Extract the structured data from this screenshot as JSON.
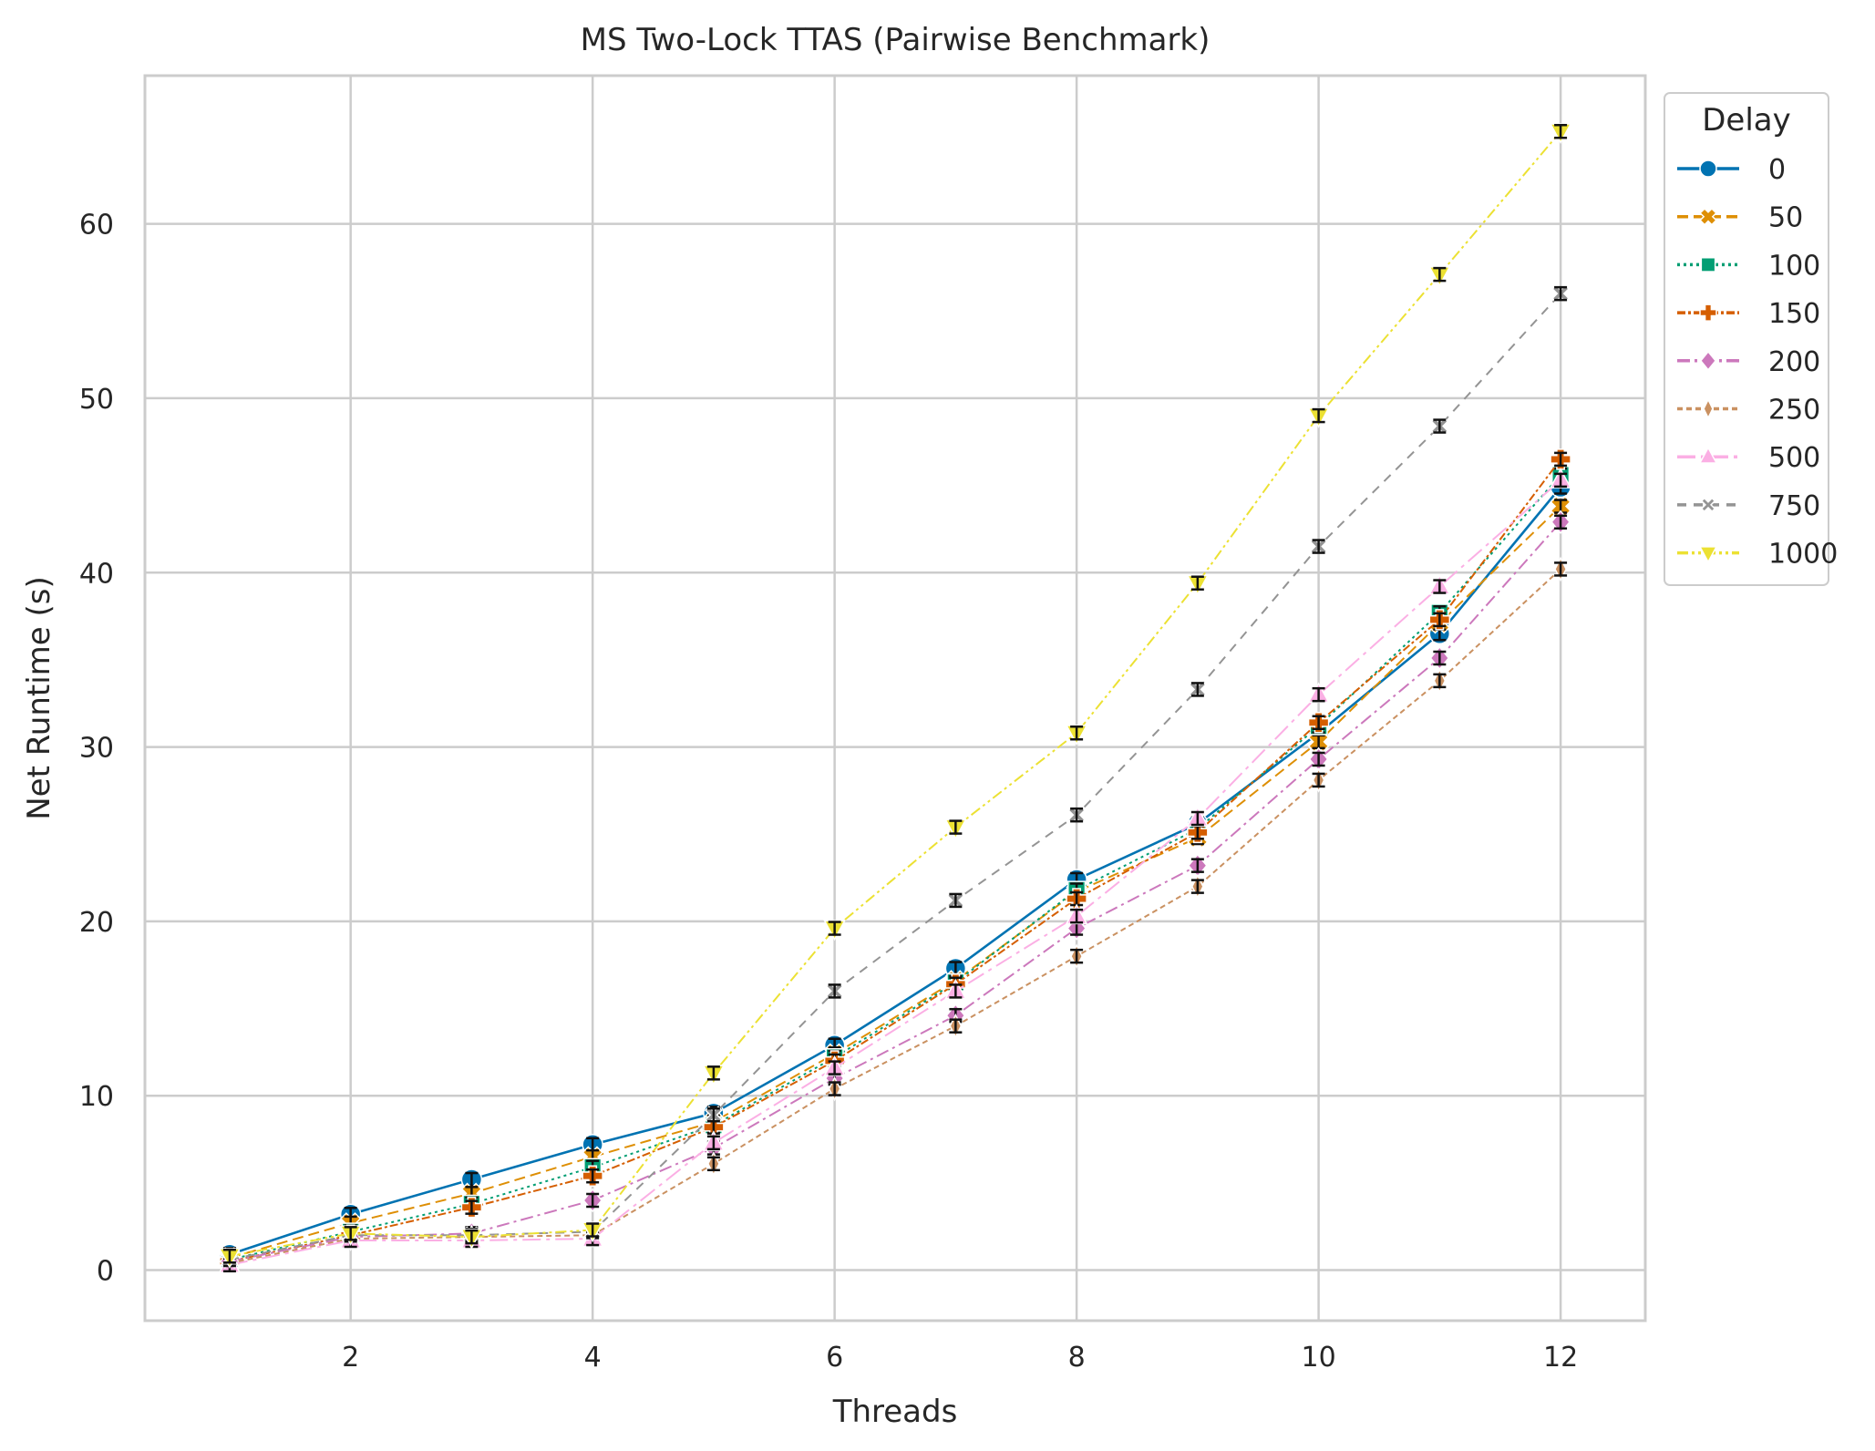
{
  "chart_data": {
    "type": "line",
    "title": "MS Two-Lock TTAS (Pairwise Benchmark)",
    "xlabel": "Threads",
    "ylabel": "Net Runtime (s)",
    "xlim": [
      0.3,
      12.7
    ],
    "ylim": [
      -2.9,
      68.5
    ],
    "x_ticks": [
      2,
      4,
      6,
      8,
      10,
      12
    ],
    "y_ticks": [
      0,
      10,
      20,
      30,
      40,
      50,
      60
    ],
    "grid": true,
    "error_bars": true,
    "legend": {
      "title": "Delay",
      "placement": "outside-top-right"
    },
    "x": [
      1,
      2,
      3,
      4,
      5,
      6,
      7,
      8,
      9,
      10,
      11,
      12
    ],
    "series": [
      {
        "name": "0",
        "color": "#0173b2",
        "marker": "circle",
        "dash": "solid",
        "values": [
          0.9,
          3.2,
          5.2,
          7.2,
          9.0,
          12.9,
          17.3,
          22.4,
          25.6,
          30.8,
          36.5,
          44.9
        ]
      },
      {
        "name": "50",
        "color": "#de8f05",
        "marker": "x-filled",
        "dash": "dashed",
        "values": [
          0.7,
          2.7,
          4.4,
          6.5,
          8.5,
          12.4,
          16.6,
          21.7,
          24.8,
          30.3,
          37.1,
          43.8
        ]
      },
      {
        "name": "100",
        "color": "#029e73",
        "marker": "square",
        "dash": "dotted",
        "values": [
          0.6,
          2.2,
          3.8,
          5.9,
          8.3,
          12.2,
          16.5,
          21.8,
          25.3,
          31.2,
          37.7,
          45.6
        ]
      },
      {
        "name": "150",
        "color": "#d55e00",
        "marker": "plus-filled",
        "dash": "dashdotted",
        "values": [
          0.5,
          2.0,
          3.6,
          5.4,
          8.2,
          12.0,
          16.4,
          21.3,
          25.1,
          31.4,
          37.3,
          46.5
        ]
      },
      {
        "name": "200",
        "color": "#cc78bc",
        "marker": "diamond",
        "dash": "dashdot",
        "values": [
          0.5,
          1.9,
          2.1,
          4.0,
          7.0,
          11.0,
          14.6,
          19.6,
          23.2,
          29.3,
          35.1,
          42.9
        ]
      },
      {
        "name": "250",
        "color": "#ca9161",
        "marker": "thin-diamond",
        "dash": "densedash",
        "values": [
          0.4,
          1.8,
          1.9,
          2.0,
          6.1,
          10.4,
          14.0,
          18.0,
          22.0,
          28.1,
          33.8,
          40.2
        ]
      },
      {
        "name": "500",
        "color": "#fbafe4",
        "marker": "triangle-up",
        "dash": "longdashdot",
        "values": [
          0.3,
          1.7,
          1.7,
          1.8,
          7.3,
          11.6,
          16.0,
          20.3,
          25.9,
          33.0,
          39.2,
          45.3
        ]
      },
      {
        "name": "750",
        "color": "#949494",
        "marker": "x-thin",
        "dash": "dashed-alt",
        "values": [
          0.6,
          2.0,
          2.0,
          2.2,
          8.9,
          16.0,
          21.2,
          26.1,
          33.3,
          41.5,
          48.4,
          56.0
        ]
      },
      {
        "name": "1000",
        "color": "#ece133",
        "marker": "triangle-down",
        "dash": "dashdotdot",
        "values": [
          0.8,
          2.1,
          1.9,
          2.3,
          11.3,
          19.6,
          25.4,
          30.8,
          39.4,
          49.0,
          57.1,
          65.3
        ]
      }
    ]
  }
}
